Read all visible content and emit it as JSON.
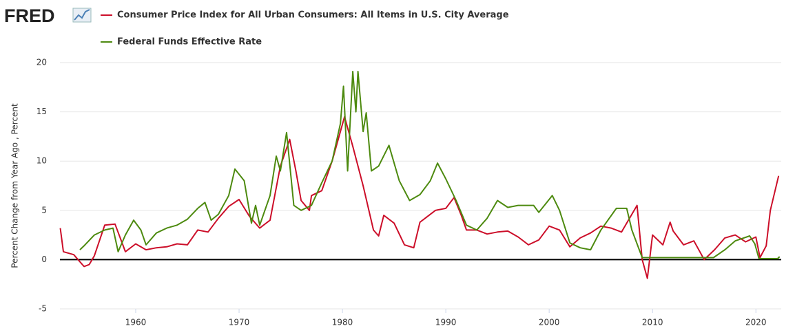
{
  "logo": "FRED",
  "chart_data": {
    "type": "line",
    "y_label": "Percent Change from Year Ago , Percent",
    "xlim": [
      1952.67,
      2022.45
    ],
    "xticks": [
      1960,
      1970,
      1980,
      1990,
      2000,
      2010,
      2020
    ],
    "ylim": [
      -5,
      20
    ],
    "yticks": [
      -5,
      0,
      5,
      10,
      15,
      20
    ],
    "grid": true,
    "series": [
      {
        "name": "Consumer Price Index for All Urban Consumers: All Items in U.S. City Average",
        "color": "#cc0e29",
        "x": [
          1952.7,
          1953,
          1954,
          1955,
          1955.5,
          1956,
          1957,
          1958,
          1959,
          1960,
          1961,
          1962,
          1963,
          1964,
          1965,
          1966,
          1967,
          1968,
          1969,
          1970,
          1971,
          1972,
          1973,
          1974,
          1974.9,
          1975.5,
          1976,
          1976.8,
          1977,
          1978,
          1979,
          1980.2,
          1981,
          1982,
          1983,
          1983.5,
          1984,
          1985,
          1986,
          1986.9,
          1987.5,
          1988,
          1989,
          1990,
          1990.8,
          1991.5,
          1992,
          1993,
          1994,
          1995,
          1996,
          1997,
          1998,
          1999,
          2000,
          2001,
          2002,
          2003,
          2004,
          2005,
          2006,
          2007,
          2008.5,
          2009,
          2009.5,
          2010,
          2011,
          2011.7,
          2012,
          2013,
          2014,
          2015,
          2016,
          2017,
          2018,
          2019,
          2020,
          2020.4,
          2021,
          2021.4,
          2022.2
        ],
        "values": [
          3.2,
          0.8,
          0.5,
          -0.7,
          -0.5,
          0.4,
          3.5,
          3.6,
          0.8,
          1.6,
          1.0,
          1.2,
          1.3,
          1.6,
          1.5,
          3.0,
          2.8,
          4.2,
          5.4,
          6.1,
          4.4,
          3.2,
          4.0,
          9.5,
          12.2,
          9.0,
          6.0,
          5.0,
          6.5,
          7.0,
          10.0,
          14.5,
          11.5,
          7.5,
          3.0,
          2.4,
          4.5,
          3.7,
          1.5,
          1.2,
          3.8,
          4.2,
          5.0,
          5.2,
          6.3,
          4.5,
          3.0,
          3.0,
          2.6,
          2.8,
          2.9,
          2.3,
          1.5,
          2.0,
          3.4,
          3.0,
          1.3,
          2.2,
          2.7,
          3.4,
          3.2,
          2.8,
          5.5,
          0.0,
          -1.9,
          2.5,
          1.5,
          3.8,
          2.9,
          1.5,
          1.9,
          0.0,
          1.0,
          2.2,
          2.5,
          1.8,
          2.3,
          0.2,
          1.4,
          5.0,
          8.5
        ]
      },
      {
        "name": "Federal Funds Effective Rate",
        "color": "#4d8a0f",
        "x": [
          1954.6,
          1955,
          1956,
          1957,
          1957.8,
          1958.3,
          1959,
          1959.8,
          1960.5,
          1961,
          1962,
          1963,
          1964,
          1965,
          1966,
          1966.7,
          1967.3,
          1968,
          1969,
          1969.6,
          1970.5,
          1971.2,
          1971.6,
          1972,
          1973,
          1973.6,
          1974,
          1974.6,
          1975.3,
          1976,
          1977,
          1978,
          1979,
          1979.8,
          1980.1,
          1980.5,
          1981,
          1981.3,
          1981.5,
          1982,
          1982.3,
          1982.8,
          1983.5,
          1984.5,
          1985.5,
          1986.5,
          1987.5,
          1988.5,
          1989.2,
          1990,
          1991,
          1992,
          1993,
          1994,
          1995,
          1996,
          1997,
          1998.5,
          1999,
          2000.3,
          2001,
          2002,
          2003,
          2004,
          2005,
          2006.5,
          2007.5,
          2008,
          2009,
          2015.9,
          2017,
          2018,
          2019.4,
          2019.9,
          2020.3,
          2022.1,
          2022.3
        ],
        "values": [
          1.0,
          1.4,
          2.5,
          3.0,
          3.2,
          0.8,
          2.5,
          4.0,
          3.0,
          1.5,
          2.7,
          3.2,
          3.5,
          4.1,
          5.2,
          5.8,
          4.0,
          4.6,
          6.5,
          9.2,
          8.0,
          3.7,
          5.5,
          3.5,
          6.5,
          10.5,
          9.0,
          12.9,
          5.5,
          5.0,
          5.5,
          7.8,
          10.0,
          13.8,
          17.6,
          9.0,
          19.1,
          15.0,
          19.1,
          13.0,
          14.9,
          9.0,
          9.5,
          11.6,
          8.0,
          6.0,
          6.6,
          8.0,
          9.8,
          8.2,
          6.0,
          3.5,
          3.0,
          4.2,
          6.0,
          5.3,
          5.5,
          5.5,
          4.8,
          6.5,
          5.0,
          1.7,
          1.2,
          1.0,
          3.0,
          5.2,
          5.2,
          3.0,
          0.2,
          0.2,
          1.0,
          1.9,
          2.4,
          1.6,
          0.1,
          0.1,
          0.3
        ]
      }
    ]
  }
}
